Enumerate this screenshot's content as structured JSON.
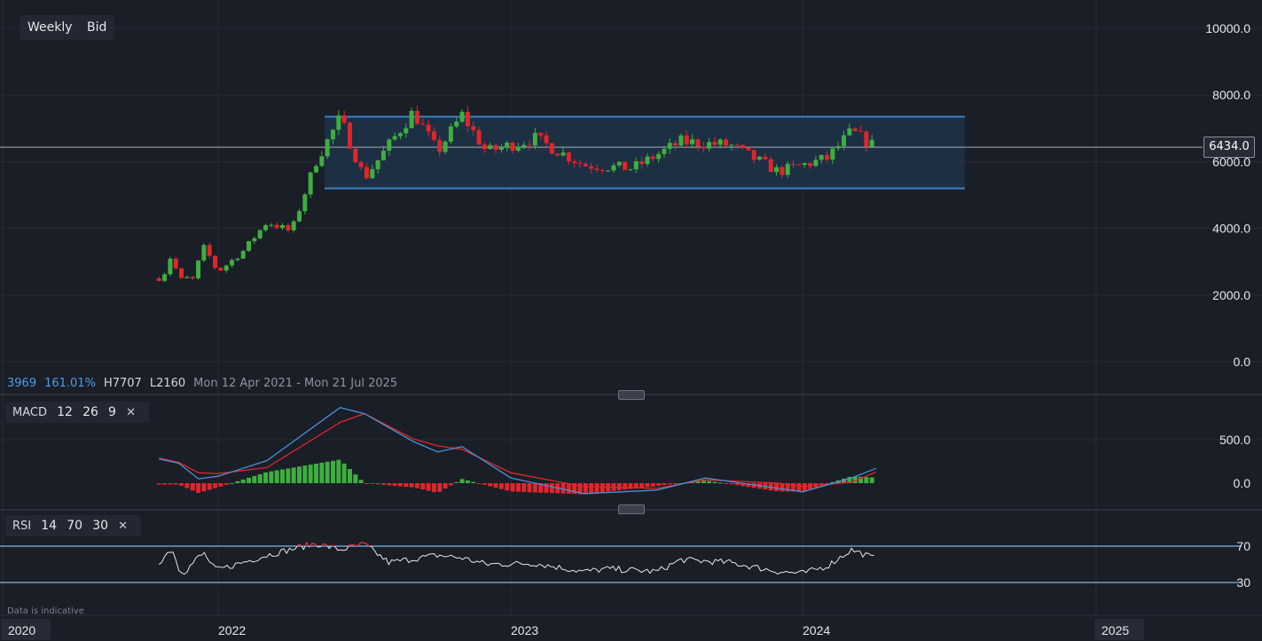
{
  "toolbar": {
    "interval": "Weekly",
    "price_type": "Bid"
  },
  "stats": {
    "change": "3969",
    "change_pct": "161.01%",
    "high_label": "H",
    "high": "7707",
    "low_label": "L",
    "low": "2160",
    "range": "Mon 12 Apr 2021 - Mon 21 Jul 2025"
  },
  "current_price": "6434.0",
  "macd_label": {
    "name": "MACD",
    "fast": "12",
    "slow": "26",
    "signal": "9"
  },
  "rsi_label": {
    "name": "RSI",
    "period": "14",
    "upper": "70",
    "lower": "30"
  },
  "disclaimer": "Data is indicative",
  "colors": {
    "background": "#1a1e27",
    "up": "#3fae3f",
    "down": "#e0262a",
    "macd_line": "#4a90d9",
    "signal_line": "#e0262a",
    "rsi_line": "#e6e8ec",
    "rsi_overbought": "#e0262a",
    "channel": "#3d7fc2"
  },
  "chart_data": [
    {
      "type": "candlestick",
      "title": "",
      "interval": "Weekly",
      "price_axis": {
        "ticks": [
          "10000.0",
          "8000.0",
          "6000.0",
          "4000.0",
          "2000.0",
          "0.0"
        ],
        "tick_values": [
          10000,
          8000,
          6000,
          4000,
          2000,
          0
        ],
        "ylim": [
          0,
          10000
        ]
      },
      "time_axis": {
        "ticks": [
          "2020",
          "2022",
          "2023",
          "2024",
          "2025"
        ]
      },
      "channel": {
        "upper": 7350,
        "lower": 5200,
        "start": "2022-05",
        "end": "2024-06"
      },
      "current_price": 6434,
      "close_path": [
        [
          "2021-04",
          2500
        ],
        [
          "2021-05",
          2700
        ],
        [
          "2021-06",
          3300
        ],
        [
          "2021-07",
          2400
        ],
        [
          "2021-08",
          2550
        ],
        [
          "2021-09",
          2400
        ],
        [
          "2021-10",
          3000
        ],
        [
          "2021-11",
          3500
        ],
        [
          "2021-12",
          3000
        ],
        [
          "2022-01",
          2700
        ],
        [
          "2022-02",
          3300
        ],
        [
          "2022-03",
          4200
        ],
        [
          "2022-04",
          3900
        ],
        [
          "2022-05",
          6000
        ],
        [
          "2022-06",
          7300
        ],
        [
          "2022-07",
          5500
        ],
        [
          "2022-08",
          6500
        ],
        [
          "2022-09",
          7500
        ],
        [
          "2022-10",
          6300
        ],
        [
          "2022-11",
          7400
        ],
        [
          "2022-12",
          6300
        ],
        [
          "2023-02",
          6700
        ],
        [
          "2023-04",
          5900
        ],
        [
          "2023-06",
          5800
        ],
        [
          "2023-08",
          6600
        ],
        [
          "2023-10",
          6500
        ],
        [
          "2023-12",
          5700
        ],
        [
          "2024-02",
          6100
        ],
        [
          "2024-03",
          6900
        ],
        [
          "2024-04",
          6434
        ]
      ]
    },
    {
      "type": "line",
      "name": "MACD",
      "params": [
        12,
        26,
        9
      ],
      "y_ticks": [
        "500.0",
        "0.0"
      ],
      "tick_values": [
        500,
        0
      ],
      "series": [
        {
          "name": "MACD",
          "points": [
            [
              "2021-04",
              280
            ],
            [
              "2021-07",
              230
            ],
            [
              "2021-10",
              50
            ],
            [
              "2022-01",
              80
            ],
            [
              "2022-03",
              260
            ],
            [
              "2022-06",
              870
            ],
            [
              "2022-07",
              800
            ],
            [
              "2022-09",
              480
            ],
            [
              "2022-10",
              360
            ],
            [
              "2022-11",
              420
            ],
            [
              "2023-01",
              60
            ],
            [
              "2023-04",
              -120
            ],
            [
              "2023-07",
              -80
            ],
            [
              "2023-09",
              60
            ],
            [
              "2023-12",
              -60
            ],
            [
              "2024-01",
              -100
            ],
            [
              "2024-03",
              60
            ],
            [
              "2024-04",
              170
            ]
          ]
        },
        {
          "name": "Signal",
          "points": [
            [
              "2021-04",
              290
            ],
            [
              "2021-07",
              240
            ],
            [
              "2021-10",
              120
            ],
            [
              "2022-01",
              110
            ],
            [
              "2022-03",
              180
            ],
            [
              "2022-06",
              700
            ],
            [
              "2022-07",
              800
            ],
            [
              "2022-09",
              510
            ],
            [
              "2022-10",
              430
            ],
            [
              "2022-11",
              390
            ],
            [
              "2023-01",
              120
            ],
            [
              "2023-04",
              -40
            ],
            [
              "2023-07",
              -60
            ],
            [
              "2023-09",
              40
            ],
            [
              "2023-12",
              0
            ],
            [
              "2024-01",
              -40
            ],
            [
              "2024-03",
              10
            ],
            [
              "2024-04",
              130
            ]
          ]
        }
      ],
      "histogram": "MACD - Signal"
    },
    {
      "type": "line",
      "name": "RSI",
      "params": [
        14,
        70,
        30
      ],
      "y_ticks": [
        "70",
        "30"
      ],
      "tick_values": [
        70,
        30
      ],
      "ylim": [
        10,
        80
      ],
      "points": [
        [
          "2021-04",
          52
        ],
        [
          "2021-06",
          68
        ],
        [
          "2021-07",
          45
        ],
        [
          "2021-08",
          42
        ],
        [
          "2021-10",
          58
        ],
        [
          "2021-11",
          62
        ],
        [
          "2021-12",
          48
        ],
        [
          "2022-01",
          44
        ],
        [
          "2022-03",
          60
        ],
        [
          "2022-05",
          73
        ],
        [
          "2022-06",
          66
        ],
        [
          "2022-07",
          72
        ],
        [
          "2022-08",
          52
        ],
        [
          "2022-10",
          60
        ],
        [
          "2022-11",
          57
        ],
        [
          "2022-12",
          50
        ],
        [
          "2023-02",
          51
        ],
        [
          "2023-04",
          42
        ],
        [
          "2023-05",
          45
        ],
        [
          "2023-07",
          42
        ],
        [
          "2023-08",
          55
        ],
        [
          "2023-10",
          52
        ],
        [
          "2023-12",
          42
        ],
        [
          "2024-01",
          40
        ],
        [
          "2024-02",
          48
        ],
        [
          "2024-03",
          66
        ],
        [
          "2024-04",
          56
        ]
      ]
    }
  ]
}
